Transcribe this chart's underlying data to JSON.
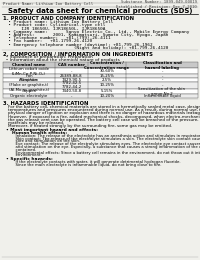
{
  "bg_color": "#f0f0eb",
  "header_top_left": "Product Name: Lithium Ion Battery Cell",
  "header_top_right": "Substance Number: 1899-049-00819\nEstablished / Revision: Dec.7,2010",
  "title": "Safety data sheet for chemical products (SDS)",
  "section1_title": "1. PRODUCT AND COMPANY IDENTIFICATION",
  "section1_lines": [
    "  • Product name: Lithium Ion Battery Cell",
    "  • Product code: Cylindrical-type cell",
    "       IJR 18650U, IJR18650L, IJR18650A",
    "  • Company name:       Sanyo Electric Co., Ltd., Mobile Energy Company",
    "  • Address:       2001, Kamimatsuri, Sumoto City, Hyogo, Japan",
    "  • Telephone number:   +81-(799)-26-4111",
    "  • Fax number:   +81-1799-26-4120",
    "  • Emergency telephone number (daytime): +81-799-26-1962",
    "                           (Night and holiday): +81-799-26-4120"
  ],
  "section2_title": "2. COMPOSITION / INFORMATION ON INGREDIENTS",
  "section2_intro": "  • Substance or preparation: Preparation",
  "section2_sub": "  • Information about the chemical nature of products",
  "table_headers": [
    "Chemical name",
    "CAS number",
    "Concentration /\nConcentration range",
    "Classification and\nhazard labeling"
  ],
  "table_rows": [
    [
      "Lithium cobalt oxide\n(LiMn-Co-P-Ni-O₂)",
      "-",
      "30-60%",
      "-"
    ],
    [
      "Iron",
      "26389-88-8",
      "15-25%",
      "-"
    ],
    [
      "Aluminum",
      "7429-90-5",
      "2-5%",
      "-"
    ],
    [
      "Graphite\n(Flake or graphite-t)\n(Al-Mo as graphite-t)",
      "7782-42-5\n7782-44-2",
      "10-25%",
      "-"
    ],
    [
      "Copper",
      "7440-50-8",
      "5-15%",
      "Sensitization of the skin\ngroup No.2"
    ],
    [
      "Organic electrolyte",
      "-",
      "10-20%",
      "Inflammable liquid"
    ]
  ],
  "section3_title": "3. HAZARDS IDENTIFICATION",
  "section3_para1": "    For the battery cell, chemical materials are stored in a hermetically sealed metal case, designed to withstand\n    temperatures and pressures encountered during normal use. As a result, during normal use, there is no\n    physical danger of ignition or explosion and there is no danger of hazardous materials leakage.",
  "section3_para2": "    However, if exposed to a fire, added mechanical shocks, decomposed, when electro-mechanical stress use,\n    the gas release vent can be operated. The battery cell case will be breached of the pressure, hazardous\n    materials may be released.",
  "section3_para3": "    Moreover, if heated strongly by the surrounding fire, some gas may be emitted.",
  "section3_bullet1": "  • Most important hazard and effects:",
  "section3_human": "      Human health effects:",
  "section3_human_lines": [
    "          Inhalation: The release of the electrolyte has an anesthesia action and stimulates in respiratory tract.",
    "          Skin contact: The release of the electrolyte stimulates a skin. The electrolyte skin contact causes a",
    "          sore and stimulation on the skin.",
    "          Eye contact: The release of the electrolyte stimulates eyes. The electrolyte eye contact causes a sore",
    "          and stimulation on the eye. Especially, a substance that causes a strong inflammation of the eyes is",
    "          contained.",
    "          Environmental effects: Since a battery cell remains in the environment, do not throw out it into the",
    "          environment."
  ],
  "section3_specific": "  • Specific hazards:",
  "section3_specific_lines": [
    "          If the electrolyte contacts with water, it will generate detrimental hydrogen fluoride.",
    "          Since the main electrolyte is inflammable liquid, do not bring close to fire."
  ]
}
